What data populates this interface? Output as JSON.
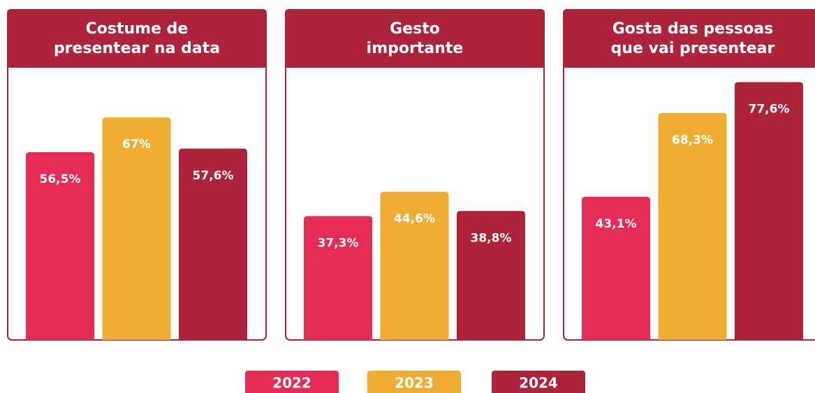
{
  "chart_data": [
    {
      "type": "bar",
      "title": [
        "Costume de",
        "presentear na data"
      ],
      "categories": [
        "2022",
        "2023",
        "2024"
      ],
      "colors": [
        "#e42c55",
        "#f0ad36",
        "#ad2339"
      ],
      "values": [
        56.5,
        67,
        57.6
      ],
      "value_labels": [
        "56,5%",
        "67%",
        "57,6%"
      ]
    },
    {
      "type": "bar",
      "title": [
        "Gesto",
        "importante"
      ],
      "categories": [
        "2022",
        "2023",
        "2024"
      ],
      "colors": [
        "#e42c55",
        "#f0ad36",
        "#ad2339"
      ],
      "values": [
        37.3,
        44.6,
        38.8
      ],
      "value_labels": [
        "37,3%",
        "44,6%",
        "38,8%"
      ]
    },
    {
      "type": "bar",
      "title": [
        "Gosta das pessoas",
        "que vai presentear"
      ],
      "categories": [
        "2022",
        "2023",
        "2024"
      ],
      "colors": [
        "#e42c55",
        "#f0ad36",
        "#ad2339"
      ],
      "values": [
        43.1,
        68.3,
        77.6
      ],
      "value_labels": [
        "43,1%",
        "68,3%",
        "77,6%"
      ]
    }
  ]
}
